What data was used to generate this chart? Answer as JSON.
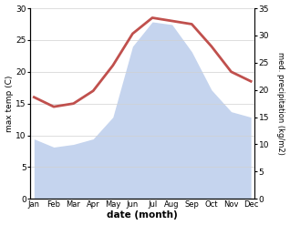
{
  "months": [
    "Jan",
    "Feb",
    "Mar",
    "Apr",
    "May",
    "Jun",
    "Jul",
    "Aug",
    "Sep",
    "Oct",
    "Nov",
    "Dec"
  ],
  "temperature": [
    16.0,
    14.5,
    15.0,
    17.0,
    21.0,
    26.0,
    28.5,
    28.0,
    27.5,
    24.0,
    20.0,
    18.5
  ],
  "precipitation": [
    11.0,
    9.5,
    10.0,
    11.0,
    15.0,
    28.0,
    32.5,
    32.0,
    27.0,
    20.0,
    16.0,
    15.0
  ],
  "temp_color": "#c0504d",
  "precip_color": "#c5d4ee",
  "background_color": "#ffffff",
  "temp_ylim": [
    0,
    30
  ],
  "precip_ylim": [
    0,
    35
  ],
  "temp_yticks": [
    0,
    5,
    10,
    15,
    20,
    25,
    30
  ],
  "precip_yticks": [
    0,
    5,
    10,
    15,
    20,
    25,
    30,
    35
  ],
  "xlabel": "date (month)",
  "ylabel_left": "max temp (C)",
  "ylabel_right": "med. precipitation (kg/m2)"
}
